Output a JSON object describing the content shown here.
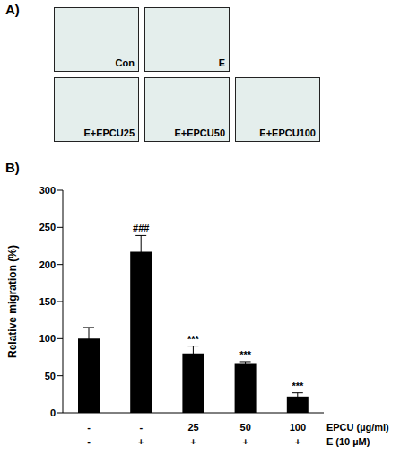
{
  "panel_a": {
    "letter": "A)",
    "images": [
      [
        "Con",
        "E"
      ],
      [
        "E+EPCU25",
        "E+EPCU50",
        "E+EPCU100"
      ]
    ]
  },
  "chart_data": {
    "type": "bar",
    "panel": "B)",
    "y_label": "Relative migration (%)",
    "x_table": {
      "rows": [
        {
          "label": "EPCU (µg/ml)",
          "values": [
            "-",
            "-",
            "25",
            "50",
            "100"
          ]
        },
        {
          "label": "E (10 µM)",
          "values": [
            "-",
            "+",
            "+",
            "+",
            "+"
          ]
        }
      ]
    },
    "values": [
      100,
      217,
      80,
      66,
      22
    ],
    "error": [
      15,
      22,
      10,
      3,
      5
    ],
    "significance": [
      null,
      "###",
      "***",
      "***",
      "***"
    ],
    "color": "#000000",
    "ylim": [
      0,
      300
    ],
    "yticks": [
      0,
      50,
      100,
      150,
      200,
      250,
      300
    ],
    "grid": false
  }
}
